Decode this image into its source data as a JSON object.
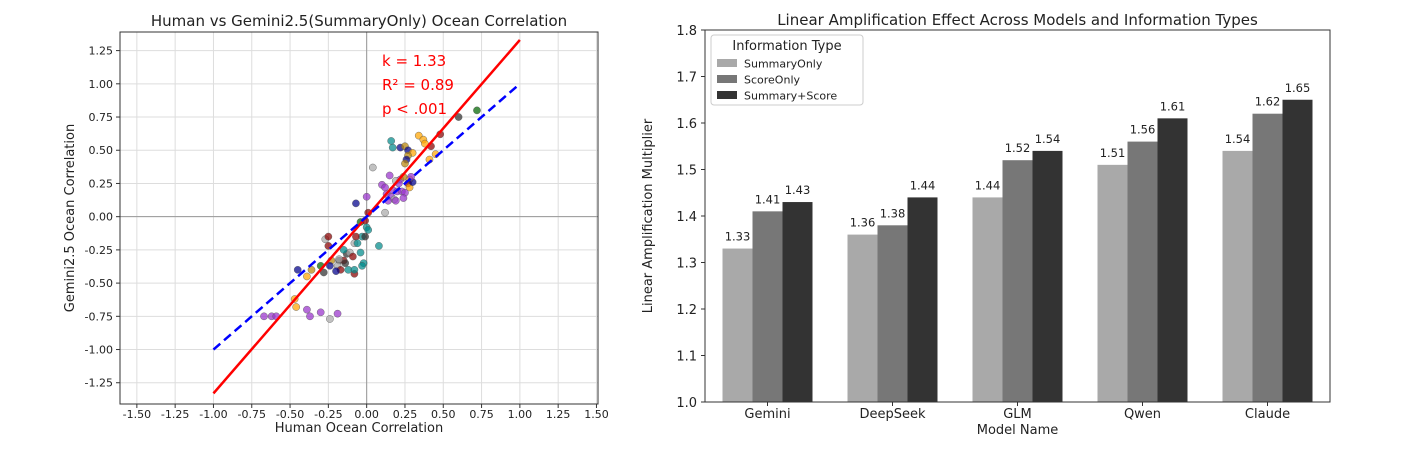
{
  "chart_data": [
    {
      "type": "scatter",
      "title": "Human vs Gemini2.5(SummaryOnly) Ocean Correlation",
      "xlabel": "Human Ocean Correlation",
      "ylabel": "Gemini2.5 Ocean Correlation",
      "xlim": [
        -1.61,
        1.51
      ],
      "ylim": [
        -1.41,
        1.39
      ],
      "xticks": [
        -1.5,
        -1.25,
        -1.0,
        -0.75,
        -0.5,
        -0.25,
        0.0,
        0.25,
        0.5,
        0.75,
        1.0,
        1.25,
        1.5
      ],
      "xtick_labels": [
        "-1.50",
        "-1.25",
        "-1.00",
        "-0.75",
        "-0.50",
        "-0.25",
        "0.00",
        "0.25",
        "0.50",
        "0.75",
        "1.00",
        "1.25",
        "1.50"
      ],
      "yticks": [
        -1.25,
        -1.0,
        -0.75,
        -0.5,
        -0.25,
        0.0,
        0.25,
        0.5,
        0.75,
        1.0,
        1.25
      ],
      "ytick_labels": [
        "-1.25",
        "-1.00",
        "-0.75",
        "-0.50",
        "-0.25",
        "0.00",
        "0.25",
        "0.50",
        "0.75",
        "1.00",
        "1.25"
      ],
      "grid": true,
      "annotations": [
        "k = 1.33",
        "R² = 0.89",
        "p < .001"
      ],
      "annotation_color": "#ff0000",
      "fit_line": {
        "slope": 1.33,
        "intercept": 0,
        "x_range": [
          -1.0,
          1.0
        ],
        "color": "#ff0000"
      },
      "identity_line": {
        "slope": 1,
        "intercept": 0,
        "x_range": [
          -1.0,
          1.0
        ],
        "color": "#0000ff",
        "style": "dashed"
      },
      "palette": {
        "p": "#9932cc",
        "o": "#ffa500",
        "t": "#008b8b",
        "db": "#00008b",
        "br": "#8b0000",
        "g": "#006400",
        "gr": "#a9a9a9",
        "k": "#2f2f2f",
        "gold": "#b8860b"
      },
      "points": [
        [
          0.72,
          0.8,
          "g"
        ],
        [
          0.6,
          0.75,
          "k"
        ],
        [
          0.48,
          0.62,
          "br"
        ],
        [
          0.34,
          0.61,
          "o"
        ],
        [
          0.37,
          0.58,
          "o"
        ],
        [
          0.38,
          0.55,
          "o"
        ],
        [
          0.42,
          0.53,
          "br"
        ],
        [
          0.16,
          0.57,
          "t"
        ],
        [
          0.17,
          0.52,
          "t"
        ],
        [
          0.22,
          0.52,
          "db"
        ],
        [
          0.25,
          0.53,
          "gold"
        ],
        [
          0.27,
          0.5,
          "db"
        ],
        [
          0.3,
          0.48,
          "o"
        ],
        [
          0.27,
          0.46,
          "gold"
        ],
        [
          0.26,
          0.43,
          "db"
        ],
        [
          0.45,
          0.47,
          "o"
        ],
        [
          0.41,
          0.43,
          "o"
        ],
        [
          0.25,
          0.4,
          "gold"
        ],
        [
          0.04,
          0.37,
          "gr"
        ],
        [
          0.15,
          0.31,
          "p"
        ],
        [
          0.22,
          0.28,
          "p"
        ],
        [
          0.24,
          0.3,
          "gold"
        ],
        [
          0.19,
          0.27,
          "gr"
        ],
        [
          0.21,
          0.25,
          "p"
        ],
        [
          0.28,
          0.28,
          "o"
        ],
        [
          0.27,
          0.25,
          "br"
        ],
        [
          0.28,
          0.22,
          "o"
        ],
        [
          0.17,
          0.2,
          "p"
        ],
        [
          0.2,
          0.19,
          "p"
        ],
        [
          0.23,
          0.19,
          "p"
        ],
        [
          0.25,
          0.18,
          "p"
        ],
        [
          0.13,
          0.17,
          "p"
        ],
        [
          0.16,
          0.15,
          "p"
        ],
        [
          0.18,
          0.13,
          "gr"
        ],
        [
          0.24,
          0.14,
          "p"
        ],
        [
          0.19,
          0.12,
          "p"
        ],
        [
          0.14,
          0.12,
          "p"
        ],
        [
          0.1,
          0.24,
          "p"
        ],
        [
          0.12,
          0.22,
          "p"
        ],
        [
          0.3,
          0.26,
          "db"
        ],
        [
          0.29,
          0.3,
          "p"
        ],
        [
          0.0,
          0.15,
          "p"
        ],
        [
          -0.07,
          0.1,
          "db"
        ],
        [
          0.12,
          0.03,
          "gr"
        ],
        [
          -0.04,
          -0.04,
          "g"
        ],
        [
          -0.01,
          -0.03,
          "br"
        ],
        [
          0.0,
          -0.08,
          "t"
        ],
        [
          0.01,
          -0.1,
          "t"
        ],
        [
          -0.03,
          -0.15,
          "t"
        ],
        [
          -0.08,
          -0.2,
          "gr"
        ],
        [
          -0.07,
          -0.15,
          "br"
        ],
        [
          -0.01,
          -0.15,
          "k"
        ],
        [
          -0.06,
          -0.2,
          "t"
        ],
        [
          0.08,
          -0.22,
          "t"
        ],
        [
          -0.13,
          -0.28,
          "k"
        ],
        [
          -0.11,
          -0.27,
          "gr"
        ],
        [
          -0.09,
          -0.3,
          "br"
        ],
        [
          -0.04,
          -0.27,
          "t"
        ],
        [
          -0.02,
          -0.35,
          "t"
        ],
        [
          -0.18,
          -0.33,
          "k"
        ],
        [
          -0.23,
          -0.33,
          "gold"
        ],
        [
          -0.19,
          -0.37,
          "gr"
        ],
        [
          -0.15,
          -0.33,
          "br"
        ],
        [
          -0.17,
          -0.4,
          "br"
        ],
        [
          -0.12,
          -0.4,
          "t"
        ],
        [
          -0.08,
          -0.43,
          "br"
        ],
        [
          -0.14,
          -0.35,
          "k"
        ],
        [
          -0.3,
          -0.37,
          "g"
        ],
        [
          -0.28,
          -0.42,
          "k"
        ],
        [
          -0.2,
          -0.41,
          "db"
        ],
        [
          -0.03,
          -0.37,
          "t"
        ],
        [
          -0.18,
          -0.32,
          "gr"
        ],
        [
          -0.08,
          -0.4,
          "t"
        ],
        [
          -0.27,
          -0.17,
          "gr"
        ],
        [
          -0.25,
          -0.15,
          "br"
        ],
        [
          -0.25,
          -0.22,
          "br"
        ],
        [
          -0.36,
          -0.4,
          "gold"
        ],
        [
          -0.39,
          -0.45,
          "o"
        ],
        [
          -0.45,
          -0.4,
          "db"
        ],
        [
          -0.15,
          -0.25,
          "t"
        ],
        [
          -0.24,
          -0.37,
          "db"
        ],
        [
          -0.47,
          -0.62,
          "o"
        ],
        [
          -0.46,
          -0.68,
          "o"
        ],
        [
          -0.67,
          -0.75,
          "p"
        ],
        [
          -0.62,
          -0.75,
          "p"
        ],
        [
          -0.59,
          -0.75,
          "p"
        ],
        [
          -0.39,
          -0.7,
          "p"
        ],
        [
          -0.3,
          -0.72,
          "p"
        ],
        [
          -0.19,
          -0.73,
          "p"
        ],
        [
          -0.24,
          -0.77,
          "gr"
        ],
        [
          -0.37,
          -0.75,
          "p"
        ],
        [
          0.01,
          0.03,
          "br"
        ]
      ]
    },
    {
      "type": "bar",
      "title": "Linear Amplification Effect Across Models and Information Types",
      "xlabel": "Model Name",
      "ylabel": "Linear Amplification Multiplier",
      "ylim": [
        1.0,
        1.8
      ],
      "yticks": [
        "1.0",
        "1.1",
        "1.2",
        "1.3",
        "1.4",
        "1.5",
        "1.6",
        "1.7",
        "1.8"
      ],
      "categories": [
        "Gemini",
        "DeepSeek",
        "GLM",
        "Qwen",
        "Claude"
      ],
      "legend_title": "Information Type",
      "legend_position": "top-left",
      "series": [
        {
          "name": "SummaryOnly",
          "color": "#a9a9a9",
          "values": [
            1.33,
            1.36,
            1.44,
            1.51,
            1.54
          ],
          "labels": [
            "1.33",
            "1.36",
            "1.44",
            "1.51",
            "1.54"
          ]
        },
        {
          "name": "ScoreOnly",
          "color": "#777777",
          "values": [
            1.41,
            1.38,
            1.52,
            1.56,
            1.62
          ],
          "labels": [
            "1.41",
            "1.38",
            "1.52",
            "1.56",
            "1.62"
          ]
        },
        {
          "name": "Summary+Score",
          "color": "#333333",
          "values": [
            1.43,
            1.44,
            1.54,
            1.61,
            1.65
          ],
          "labels": [
            "1.43",
            "1.44",
            "1.54",
            "1.61",
            "1.65"
          ]
        }
      ]
    }
  ]
}
